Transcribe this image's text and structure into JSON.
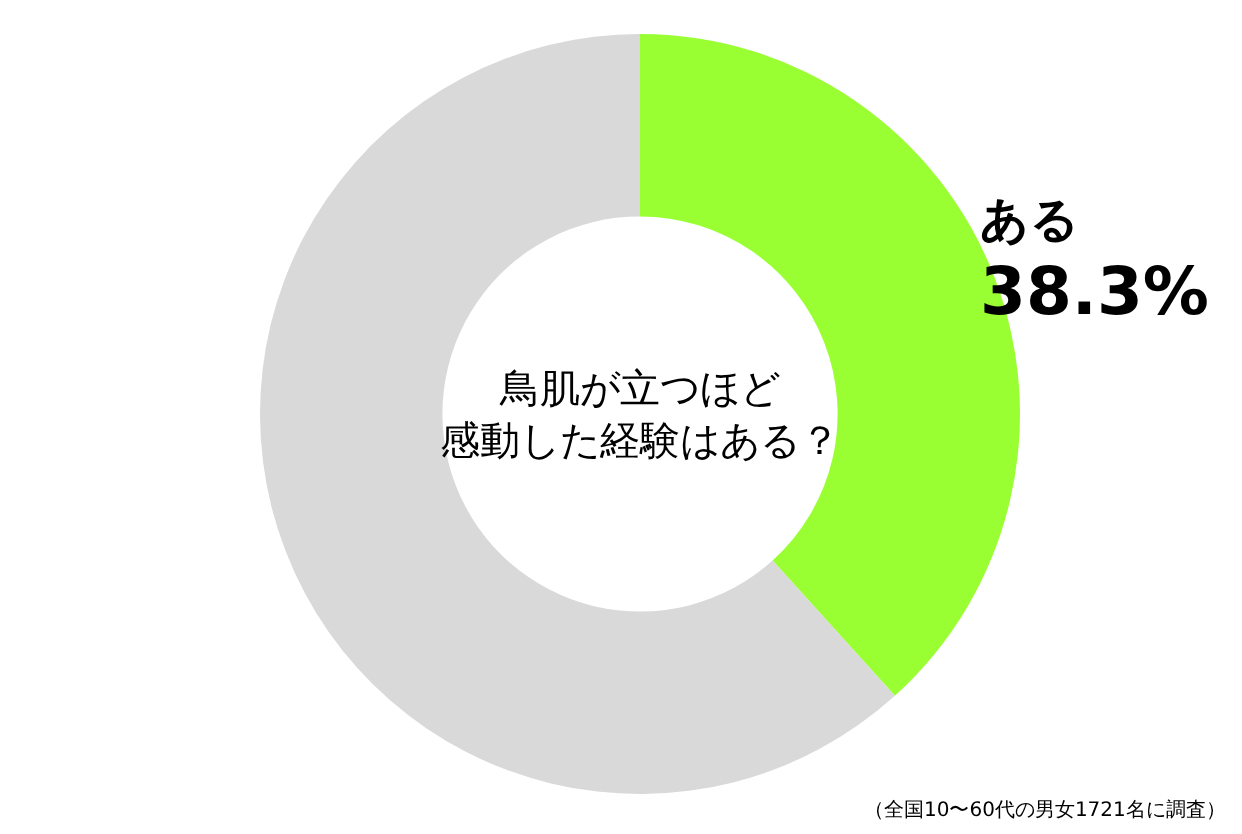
{
  "chart_data": {
    "type": "donut",
    "title": "鳥肌が立つほど感動した経験はある？",
    "categories": [
      "ある",
      null
    ],
    "values": [
      38.3,
      61.7
    ],
    "colors": [
      "#99ff33",
      "#d9d9d9"
    ],
    "value_labels": [
      "38.3%",
      null
    ],
    "legend": false,
    "annotations": [
      "（全国10〜60代の男女1721名に調査）"
    ]
  }
}
